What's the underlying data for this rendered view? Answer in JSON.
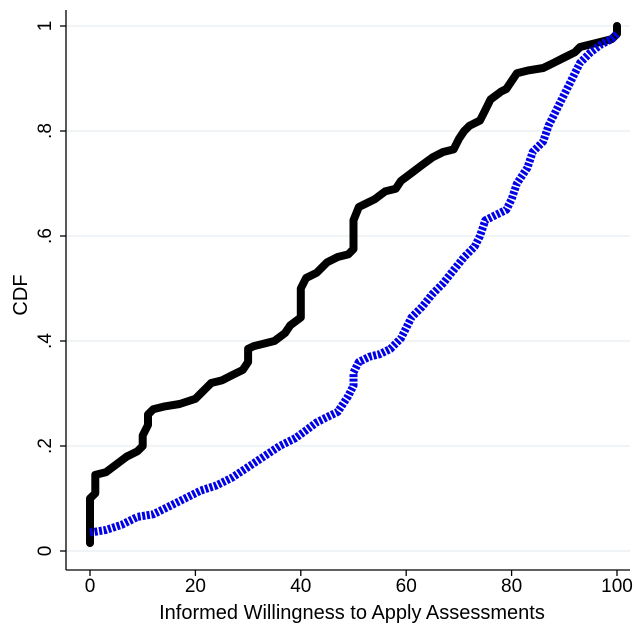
{
  "chart_data": {
    "type": "line",
    "title": "",
    "xlabel": "Informed Willingness to Apply Assessments",
    "ylabel": "CDF",
    "xlim": [
      0,
      100
    ],
    "ylim": [
      0,
      1
    ],
    "x_ticks": [
      {
        "value": 0,
        "label": "0"
      },
      {
        "value": 20,
        "label": "20"
      },
      {
        "value": 40,
        "label": "40"
      },
      {
        "value": 60,
        "label": "60"
      },
      {
        "value": 80,
        "label": "80"
      },
      {
        "value": 100,
        "label": "100"
      }
    ],
    "y_ticks": [
      {
        "value": 0,
        "label": "0"
      },
      {
        "value": 0.2,
        "label": ".2"
      },
      {
        "value": 0.4,
        "label": ".4"
      },
      {
        "value": 0.6,
        "label": ".6"
      },
      {
        "value": 0.8,
        "label": ".8"
      },
      {
        "value": 1,
        "label": "1"
      }
    ],
    "grid": "horizontal",
    "legend": "none",
    "series": [
      {
        "color": "#000000",
        "style": "solid",
        "points": [
          [
            0,
            0.015
          ],
          [
            0,
            0.1
          ],
          [
            1,
            0.11
          ],
          [
            1,
            0.145
          ],
          [
            3,
            0.15
          ],
          [
            5,
            0.165
          ],
          [
            7,
            0.18
          ],
          [
            9,
            0.19
          ],
          [
            10,
            0.2
          ],
          [
            10,
            0.22
          ],
          [
            11,
            0.24
          ],
          [
            11,
            0.26
          ],
          [
            12,
            0.27
          ],
          [
            14,
            0.275
          ],
          [
            17,
            0.28
          ],
          [
            20,
            0.29
          ],
          [
            21,
            0.3
          ],
          [
            22,
            0.31
          ],
          [
            23,
            0.32
          ],
          [
            25,
            0.325
          ],
          [
            27,
            0.335
          ],
          [
            29,
            0.345
          ],
          [
            30,
            0.36
          ],
          [
            30,
            0.385
          ],
          [
            31,
            0.39
          ],
          [
            33,
            0.395
          ],
          [
            35,
            0.4
          ],
          [
            37,
            0.415
          ],
          [
            38,
            0.43
          ],
          [
            40,
            0.445
          ],
          [
            40,
            0.47
          ],
          [
            40,
            0.5
          ],
          [
            41,
            0.52
          ],
          [
            43,
            0.53
          ],
          [
            45,
            0.55
          ],
          [
            47,
            0.56
          ],
          [
            49,
            0.565
          ],
          [
            50,
            0.575
          ],
          [
            50,
            0.63
          ],
          [
            51,
            0.655
          ],
          [
            52,
            0.66
          ],
          [
            54,
            0.67
          ],
          [
            56,
            0.685
          ],
          [
            58,
            0.69
          ],
          [
            59,
            0.705
          ],
          [
            61,
            0.72
          ],
          [
            63,
            0.735
          ],
          [
            65,
            0.75
          ],
          [
            67,
            0.76
          ],
          [
            69,
            0.765
          ],
          [
            70,
            0.785
          ],
          [
            71,
            0.8
          ],
          [
            72,
            0.81
          ],
          [
            74,
            0.82
          ],
          [
            75,
            0.84
          ],
          [
            76,
            0.86
          ],
          [
            78,
            0.875
          ],
          [
            79,
            0.88
          ],
          [
            80,
            0.895
          ],
          [
            81,
            0.91
          ],
          [
            83,
            0.915
          ],
          [
            86,
            0.92
          ],
          [
            88,
            0.93
          ],
          [
            90,
            0.94
          ],
          [
            92,
            0.95
          ],
          [
            93,
            0.96
          ],
          [
            95,
            0.965
          ],
          [
            97,
            0.97
          ],
          [
            99,
            0.975
          ],
          [
            100,
            0.985
          ],
          [
            100,
            1.0
          ]
        ]
      },
      {
        "color": "#0000e6",
        "style": "dotted",
        "points": [
          [
            0,
            0.035
          ],
          [
            3,
            0.04
          ],
          [
            6,
            0.05
          ],
          [
            9,
            0.065
          ],
          [
            12,
            0.07
          ],
          [
            15,
            0.085
          ],
          [
            18,
            0.1
          ],
          [
            21,
            0.115
          ],
          [
            24,
            0.125
          ],
          [
            27,
            0.14
          ],
          [
            30,
            0.16
          ],
          [
            33,
            0.18
          ],
          [
            36,
            0.2
          ],
          [
            39,
            0.215
          ],
          [
            41,
            0.23
          ],
          [
            43,
            0.245
          ],
          [
            45,
            0.255
          ],
          [
            47,
            0.265
          ],
          [
            48,
            0.28
          ],
          [
            49,
            0.295
          ],
          [
            50,
            0.315
          ],
          [
            50,
            0.34
          ],
          [
            51,
            0.36
          ],
          [
            53,
            0.37
          ],
          [
            55,
            0.375
          ],
          [
            57,
            0.385
          ],
          [
            59,
            0.405
          ],
          [
            60,
            0.425
          ],
          [
            61,
            0.445
          ],
          [
            63,
            0.465
          ],
          [
            65,
            0.49
          ],
          [
            67,
            0.51
          ],
          [
            69,
            0.535
          ],
          [
            71,
            0.56
          ],
          [
            73,
            0.58
          ],
          [
            74,
            0.6
          ],
          [
            75,
            0.63
          ],
          [
            77,
            0.64
          ],
          [
            79,
            0.65
          ],
          [
            80,
            0.67
          ],
          [
            81,
            0.7
          ],
          [
            83,
            0.73
          ],
          [
            84,
            0.76
          ],
          [
            86,
            0.78
          ],
          [
            87,
            0.81
          ],
          [
            88,
            0.83
          ],
          [
            89,
            0.85
          ],
          [
            90,
            0.87
          ],
          [
            91,
            0.89
          ],
          [
            92,
            0.91
          ],
          [
            93,
            0.93
          ],
          [
            95,
            0.95
          ],
          [
            97,
            0.965
          ],
          [
            99,
            0.975
          ],
          [
            100,
            0.985
          ]
        ]
      }
    ]
  }
}
